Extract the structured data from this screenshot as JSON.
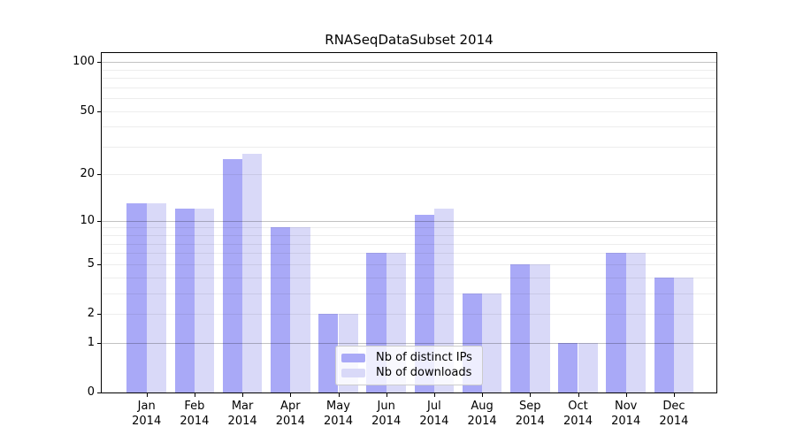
{
  "title": "RNASeqDataSubset 2014",
  "chart_data": {
    "type": "bar",
    "title": "RNASeqDataSubset 2014",
    "categories": [
      "Jan",
      "Feb",
      "Mar",
      "Apr",
      "May",
      "Jun",
      "Jul",
      "Aug",
      "Sep",
      "Oct",
      "Nov",
      "Dec"
    ],
    "category_year": "2014",
    "series": [
      {
        "name": "Nb of distinct IPs",
        "color": "#a9a9f7",
        "values": [
          13,
          12,
          25,
          9,
          2,
          6,
          11,
          3,
          5,
          1,
          6,
          4
        ]
      },
      {
        "name": "Nb of downloads",
        "color": "#d9d9f8",
        "values": [
          13,
          12,
          27,
          9,
          2,
          6,
          12,
          3,
          5,
          1,
          6,
          4
        ]
      }
    ],
    "xlabel": "",
    "ylabel": "",
    "y_axis": {
      "scale": "symlog",
      "tick_values": [
        0,
        1,
        2,
        5,
        10,
        20,
        50,
        100
      ],
      "major_gridlines": [
        1,
        10,
        100
      ],
      "minor_gridlines": [
        2,
        3,
        4,
        5,
        6,
        7,
        8,
        9,
        20,
        30,
        40,
        50,
        60,
        70,
        80,
        90
      ],
      "ymin": 0,
      "ymax": 113.5
    },
    "grid": true,
    "legend": {
      "location": "inside-bottom-center",
      "entries": [
        "Nb of distinct IPs",
        "Nb of downloads"
      ]
    },
    "colors": {
      "grid_major": "rgba(0,0,0,0.24)",
      "grid_minor": "rgba(0,0,0,0.07)",
      "axis": "#000000",
      "background": "#ffffff"
    }
  }
}
